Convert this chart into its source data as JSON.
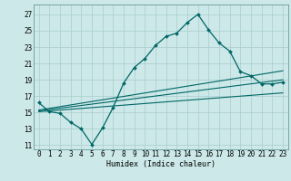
{
  "xlabel": "Humidex (Indice chaleur)",
  "background_color": "#cce8e8",
  "grid_color": "#aacccc",
  "line_color": "#006666",
  "x_ticks": [
    0,
    1,
    2,
    3,
    4,
    5,
    6,
    7,
    8,
    9,
    10,
    11,
    12,
    13,
    14,
    15,
    16,
    17,
    18,
    19,
    20,
    21,
    22,
    23
  ],
  "y_ticks": [
    11,
    13,
    15,
    17,
    19,
    21,
    23,
    25,
    27
  ],
  "ylim": [
    10.5,
    28.2
  ],
  "xlim": [
    -0.5,
    23.5
  ],
  "main_line": {
    "x": [
      0,
      1,
      2,
      3,
      4,
      5,
      6,
      7,
      8,
      9,
      10,
      11,
      12,
      13,
      14,
      15,
      16,
      17,
      18,
      19,
      20,
      21,
      22,
      23
    ],
    "y": [
      16.2,
      15.1,
      14.9,
      13.8,
      13.0,
      11.1,
      13.1,
      15.6,
      18.6,
      20.5,
      21.6,
      23.2,
      24.3,
      24.7,
      26.0,
      27.0,
      25.1,
      23.5,
      22.5,
      20.0,
      19.5,
      18.5,
      18.5,
      18.7
    ]
  },
  "line2": {
    "x": [
      0,
      23
    ],
    "y": [
      15.3,
      20.1
    ]
  },
  "line3": {
    "x": [
      0,
      23
    ],
    "y": [
      15.1,
      17.4
    ]
  },
  "line4": {
    "x": [
      0,
      23
    ],
    "y": [
      15.2,
      19.0
    ]
  },
  "tick_fontsize": 5.5,
  "label_fontsize": 6.0
}
